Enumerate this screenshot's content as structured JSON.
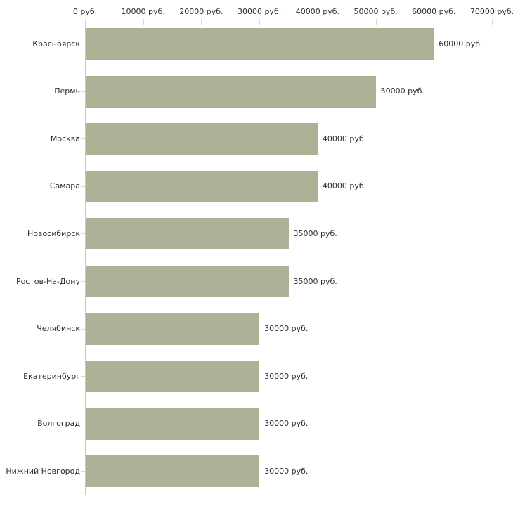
{
  "chart_data": {
    "type": "bar",
    "orientation": "horizontal",
    "title": "",
    "xlabel": "",
    "ylabel": "",
    "unit": "руб.",
    "categories": [
      "Красноярск",
      "Пермь",
      "Москва",
      "Самара",
      "Новосибирск",
      "Ростов-На-Дону",
      "Челябинск",
      "Екатеринбург",
      "Волгоград",
      "Нижний Новгород"
    ],
    "values": [
      60000,
      50000,
      40000,
      40000,
      35000,
      35000,
      30000,
      30000,
      30000,
      30000
    ],
    "bar_value_labels": [
      "60000 руб.",
      "50000 руб.",
      "40000 руб.",
      "40000 руб.",
      "35000 руб.",
      "35000 руб.",
      "30000 руб.",
      "30000 руб.",
      "30000 руб.",
      "30000 руб."
    ],
    "x_tick_values": [
      0,
      10000,
      20000,
      30000,
      40000,
      50000,
      60000,
      70000
    ],
    "x_tick_labels": [
      "0 руб.",
      "10000 руб.",
      "20000 руб.",
      "30000 руб.",
      "40000 руб.",
      "50000 руб.",
      "60000 руб.",
      "70000 руб."
    ],
    "xlim": [
      0,
      70000
    ],
    "grid": false,
    "legend": "none",
    "x_axis_position": "top",
    "value_label_position": "right-of-bar",
    "colors": {
      "bar": "#adb297",
      "axis_line": "#c6c6c6",
      "tick_mark": "#d9dcbc",
      "text": "#2e2e2e",
      "background": "#ffffff"
    }
  }
}
